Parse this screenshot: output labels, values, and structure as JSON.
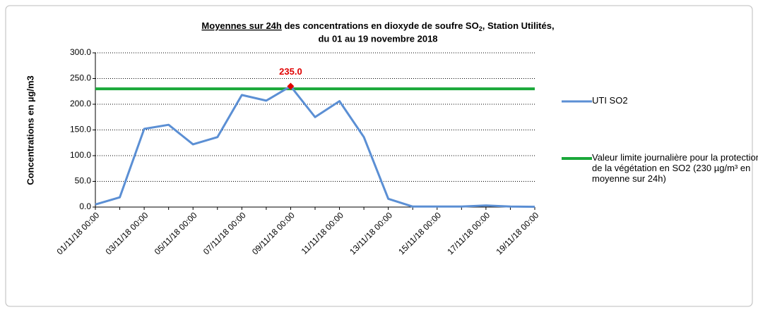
{
  "chart_data": {
    "type": "line",
    "title": {
      "underlined": "Moyennes sur 24h",
      "rest": " des concentrations en dioxyde de soufre SO",
      "sub": "2",
      "tail": ", Station Utilités,",
      "line2": "du 01 au 19 novembre 2018"
    },
    "y_label": "Concentrations en µg/m3",
    "categories": [
      "01/11/18 00:00",
      null,
      "03/11/18 00:00",
      null,
      "05/11/18 00:00",
      null,
      "07/11/18 00:00",
      null,
      "09/11/18 00:00",
      null,
      "11/11/18 00:00",
      null,
      "13/11/18 00:00",
      null,
      "15/11/18 00:00",
      null,
      "17/11/18 00:00",
      null,
      "19/11/18 00:00"
    ],
    "series": [
      {
        "name": "UTI SO2",
        "color": "#5b8fd4",
        "values": [
          5,
          19,
          152,
          160,
          122,
          136,
          218,
          207,
          235,
          175,
          206,
          136,
          16,
          1,
          1,
          1,
          3,
          1,
          0.5
        ],
        "value_labels": [
          null,
          null,
          null,
          null,
          null,
          null,
          null,
          null,
          "235.0",
          null,
          null,
          null,
          null,
          null,
          null,
          null,
          null,
          null,
          null
        ],
        "label_color": "#e00000"
      }
    ],
    "limit": {
      "name": " Valeur limite journalière pour la protection de la végétation en SO2 (230 µg/m³ en moyenne sur 24h)",
      "color": "#1aa83a",
      "value": 230
    },
    "ylim": [
      0,
      300
    ],
    "yticks": [
      {
        "value": 0,
        "label": "0.0"
      },
      {
        "value": 50,
        "label": "50.0"
      },
      {
        "value": 100,
        "label": "100.0"
      },
      {
        "value": 150,
        "label": "150.0"
      },
      {
        "value": 200,
        "label": "200.0"
      },
      {
        "value": 250,
        "label": "250.0"
      },
      {
        "value": 300,
        "label": "300.0"
      }
    ],
    "grid": true
  }
}
